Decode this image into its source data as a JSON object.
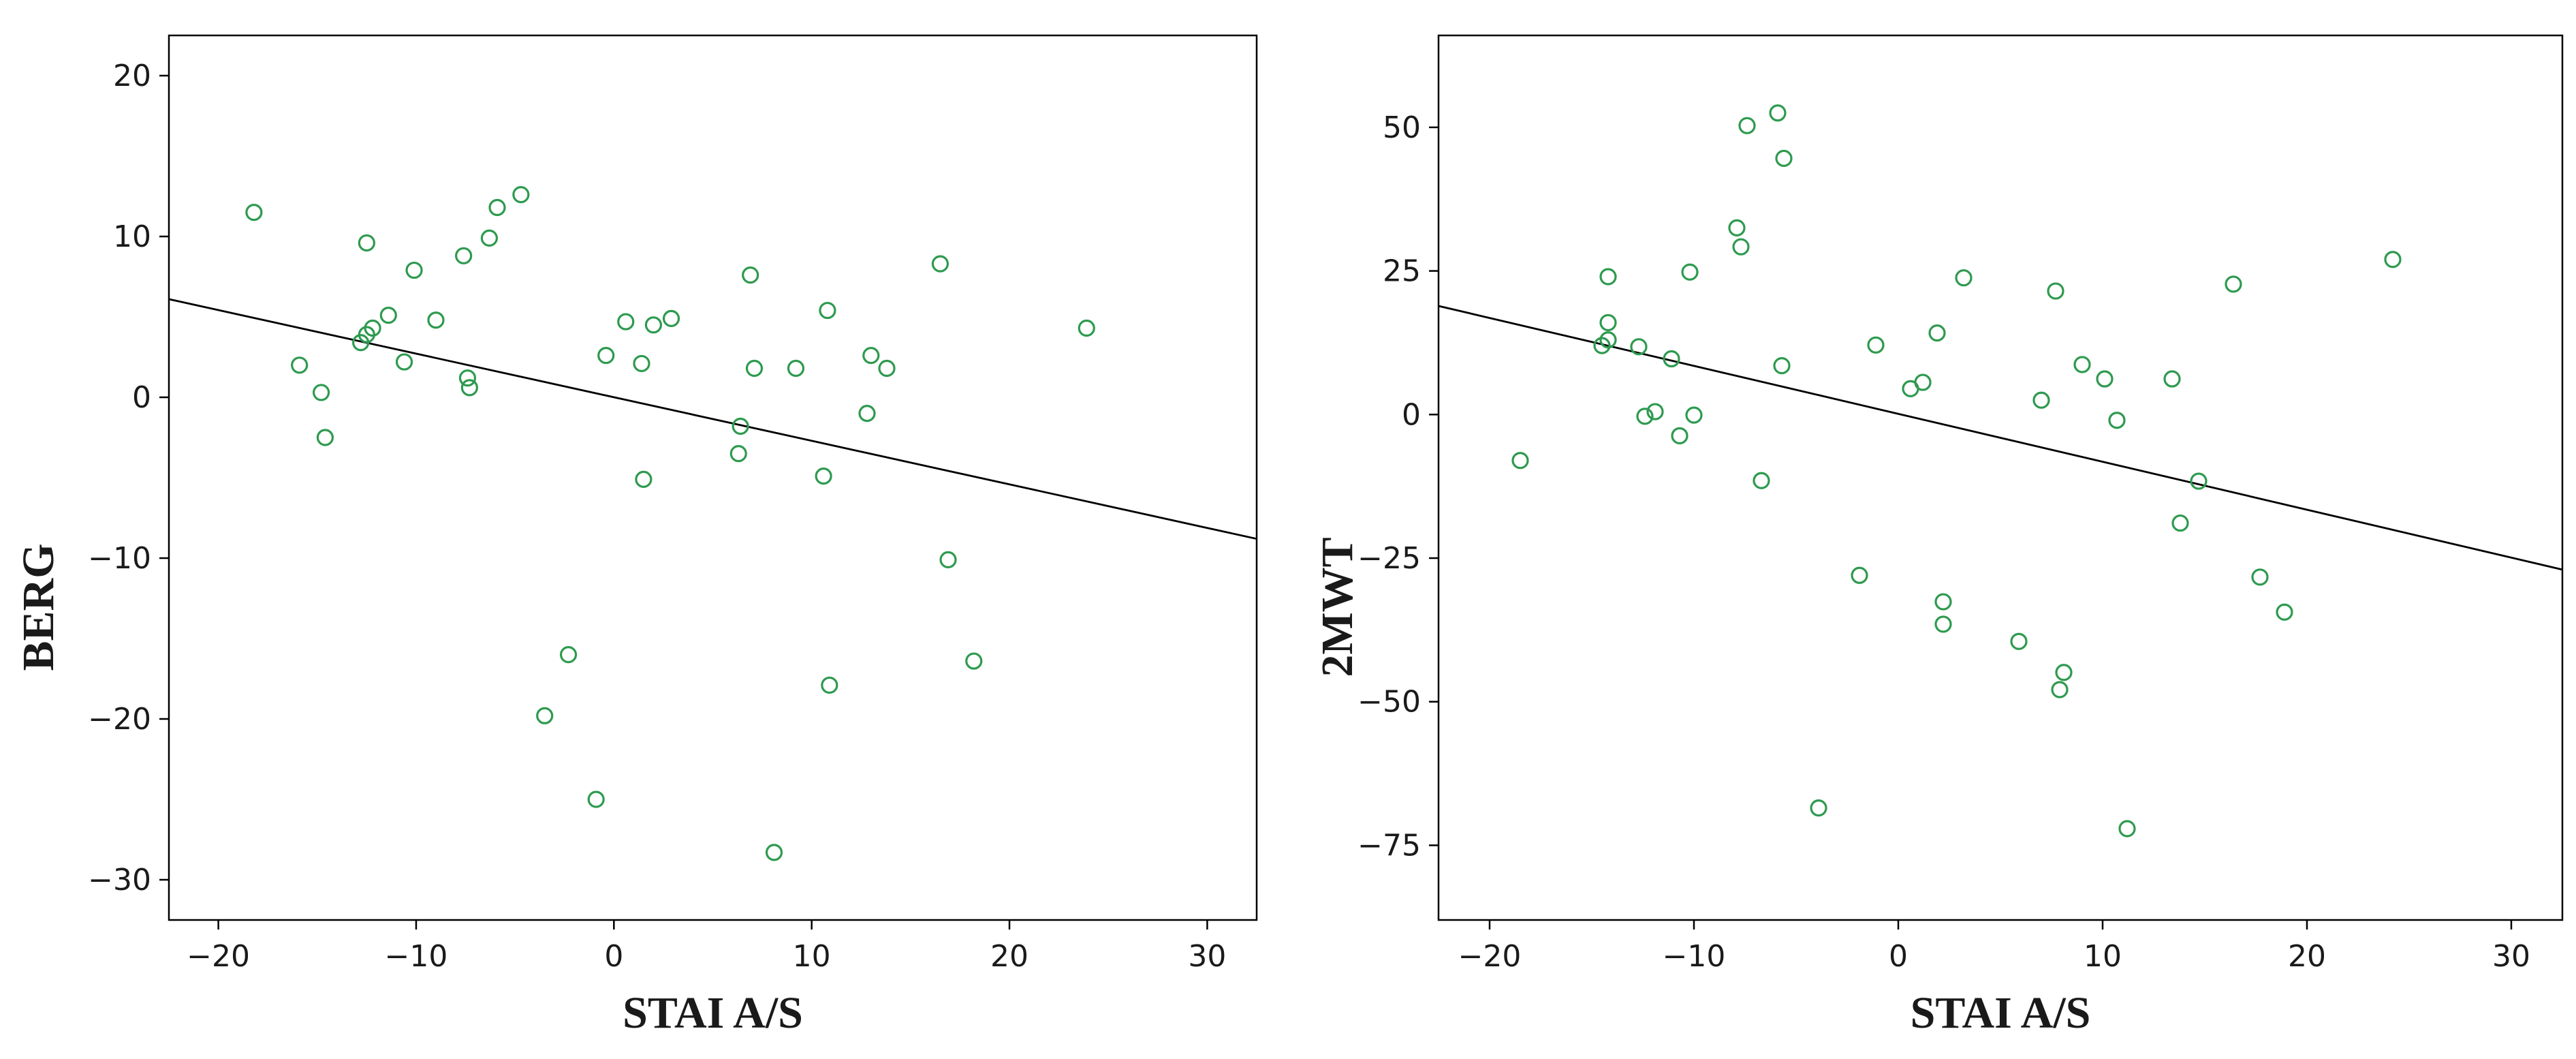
{
  "chart_data": [
    {
      "type": "scatter",
      "xlabel": "STAI A/S",
      "ylabel": "BERG",
      "xlim": [
        -22.5,
        32.5
      ],
      "ylim": [
        -32.5,
        22.5
      ],
      "xticks": [
        -20,
        -10,
        0,
        10,
        20,
        30
      ],
      "yticks": [
        20,
        10,
        0,
        -10,
        -20,
        -30
      ],
      "marker_color": "#2e9a4f",
      "fit_line": {
        "x": [
          -22.5,
          32.5
        ],
        "y": [
          6.1,
          -8.8
        ]
      },
      "series": [
        {
          "x": [
            -18.2,
            -15.9,
            -14.8,
            -14.6,
            -12.8,
            -12.5,
            -12.2,
            -12.5,
            -11.4,
            -10.6,
            -10.1,
            -9.0,
            -7.6,
            -7.4,
            -7.3,
            -6.3,
            -5.9,
            -4.7,
            -3.5,
            -2.3,
            -0.9,
            -0.4,
            0.6,
            1.4,
            1.5,
            2.0,
            2.9,
            6.3,
            6.4,
            6.9,
            7.1,
            8.1,
            9.2,
            10.6,
            10.8,
            10.9,
            12.8,
            13.0,
            13.8,
            16.5,
            16.9,
            18.2,
            23.9
          ],
          "y": [
            11.5,
            2.0,
            0.3,
            -2.5,
            3.4,
            3.9,
            4.3,
            9.6,
            5.1,
            2.2,
            7.9,
            4.8,
            8.8,
            1.2,
            0.6,
            9.9,
            11.8,
            12.6,
            -19.8,
            -16.0,
            -25.0,
            2.6,
            4.7,
            2.1,
            -5.1,
            4.5,
            4.9,
            -3.5,
            -1.8,
            7.6,
            1.8,
            -28.3,
            1.8,
            -4.9,
            5.4,
            -17.9,
            -1.0,
            2.6,
            1.8,
            8.3,
            -10.1,
            -16.4,
            4.3
          ]
        }
      ]
    },
    {
      "type": "scatter",
      "xlabel": "STAI A/S",
      "ylabel": "2MWT",
      "xlim": [
        -22.5,
        32.5
      ],
      "ylim": [
        -88,
        66
      ],
      "xticks": [
        -20,
        -10,
        0,
        10,
        20,
        30
      ],
      "yticks": [
        50,
        25,
        0,
        -25,
        -50,
        -75
      ],
      "marker_color": "#2e9a4f",
      "fit_line": {
        "x": [
          -22.5,
          32.5
        ],
        "y": [
          18.9,
          -27.0
        ]
      },
      "series": [
        {
          "x": [
            -18.5,
            -14.5,
            -14.2,
            -14.2,
            -14.2,
            -12.7,
            -12.4,
            -11.9,
            -11.1,
            -10.7,
            -10.2,
            -10.0,
            -7.9,
            -7.7,
            -7.4,
            -6.7,
            -5.9,
            -5.7,
            -5.6,
            -3.9,
            -1.9,
            -1.1,
            0.6,
            1.2,
            1.9,
            2.2,
            2.2,
            3.2,
            5.9,
            7.0,
            7.7,
            7.9,
            8.1,
            9.0,
            10.1,
            10.7,
            11.2,
            13.4,
            13.8,
            14.7,
            16.4,
            17.7,
            18.9,
            24.2
          ],
          "y": [
            -8.0,
            12.0,
            24.0,
            16.0,
            13.0,
            11.8,
            -0.3,
            0.5,
            9.7,
            -3.7,
            24.8,
            -0.1,
            32.5,
            29.2,
            50.3,
            -11.5,
            52.5,
            8.5,
            44.6,
            -68.5,
            -28.0,
            12.1,
            4.5,
            5.6,
            14.2,
            -32.6,
            -36.5,
            23.8,
            -39.5,
            2.5,
            21.5,
            -47.9,
            -44.9,
            8.7,
            6.2,
            -1.0,
            -72.1,
            6.2,
            -18.9,
            -11.6,
            22.7,
            -28.3,
            -34.4,
            27.0
          ]
        }
      ]
    }
  ]
}
